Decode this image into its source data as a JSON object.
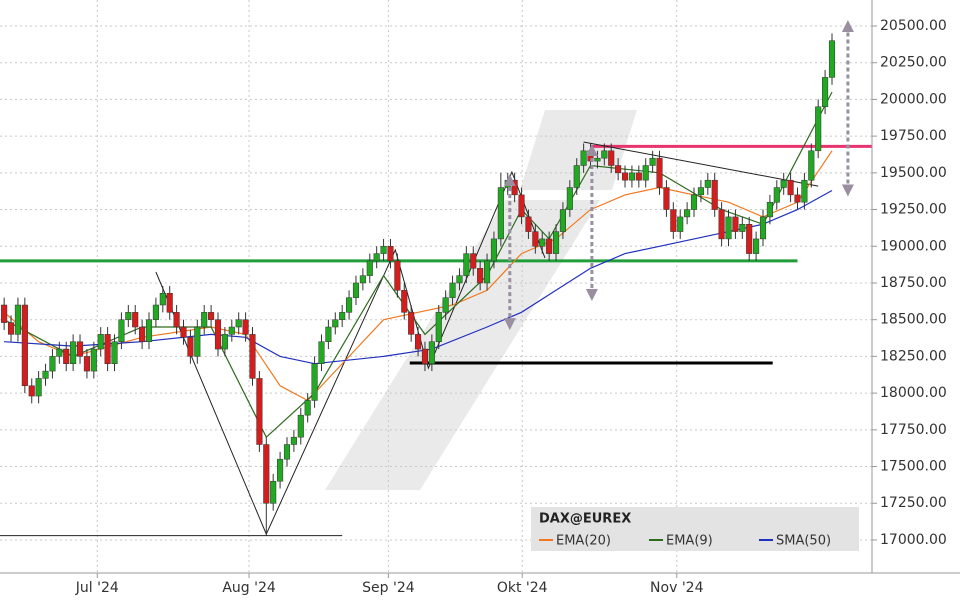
{
  "chart_data": {
    "type": "candlestick",
    "instrument": "DAX@EUREX",
    "xlim": [
      -0.6,
      125.8
    ],
    "xticks": [
      {
        "value": 13.5,
        "label": "Jul '24"
      },
      {
        "value": 35.5,
        "label": "Aug '24"
      },
      {
        "value": 55.7,
        "label": "Sep '24"
      },
      {
        "value": 75.1,
        "label": "Okt '24"
      },
      {
        "value": 97.5,
        "label": "Nov '24"
      }
    ],
    "ylim": [
      16775,
      20677
    ],
    "yticks": [
      {
        "value": 17000,
        "label": "17000.00"
      },
      {
        "value": 17250,
        "label": "17250.00"
      },
      {
        "value": 17500,
        "label": "17500.00"
      },
      {
        "value": 17750,
        "label": "17750.00"
      },
      {
        "value": 18000,
        "label": "18000.00"
      },
      {
        "value": 18250,
        "label": "18250.00"
      },
      {
        "value": 18500,
        "label": "18500.00"
      },
      {
        "value": 18750,
        "label": "18750.00"
      },
      {
        "value": 19000,
        "label": "19000.00"
      },
      {
        "value": 19250,
        "label": "19250.00"
      },
      {
        "value": 19500,
        "label": "19500.00"
      },
      {
        "value": 19750,
        "label": "19750.00"
      },
      {
        "value": 20000,
        "label": "20000.00"
      },
      {
        "value": 20250,
        "label": "20250.00"
      },
      {
        "value": 20500,
        "label": "20500.00"
      }
    ],
    "grid": true,
    "up_color": "#22a822",
    "down_color": "#d41e1e",
    "open": [
      18600,
      18480,
      18400,
      18600,
      18050,
      17980,
      18100,
      18150,
      18250,
      18300,
      18200,
      18350,
      18250,
      18150,
      18300,
      18400,
      18200,
      18350,
      18500,
      18550,
      18450,
      18350,
      18500,
      18600,
      18680,
      18550,
      18450,
      18380,
      18250,
      18450,
      18550,
      18500,
      18300,
      18400,
      18450,
      18500,
      18400,
      18100,
      17650,
      17250,
      17400,
      17550,
      17650,
      17700,
      17850,
      17950,
      18200,
      18350,
      18450,
      18500,
      18550,
      18650,
      18750,
      18800,
      18900,
      18950,
      19000,
      18900,
      18700,
      18550,
      18400,
      18300,
      18200,
      18350,
      18550,
      18650,
      18750,
      18800,
      18950,
      18850,
      18750,
      18900,
      19050,
      19400,
      19450,
      19350,
      19200,
      19100,
      19000,
      19050,
      18950,
      19100,
      19250,
      19400,
      19550,
      19650,
      19580,
      19600,
      19650,
      19550,
      19500,
      19450,
      19500,
      19450,
      19550,
      19600,
      19400,
      19250,
      19100,
      19200,
      19250,
      19350,
      19400,
      19450,
      19250,
      19050,
      19200,
      19100,
      19150,
      18950,
      19050,
      19200,
      19300,
      19400,
      19450,
      19350,
      19300,
      19450,
      19650,
      19950,
      20150
    ],
    "high": [
      18650,
      18530,
      18650,
      18650,
      18100,
      18150,
      18200,
      18300,
      18350,
      18350,
      18400,
      18400,
      18300,
      18350,
      18450,
      18450,
      18400,
      18550,
      18600,
      18600,
      18500,
      18550,
      18650,
      18730,
      18730,
      18600,
      18500,
      18430,
      18500,
      18600,
      18600,
      18550,
      18450,
      18500,
      18550,
      18550,
      18450,
      18150,
      17700,
      17450,
      17600,
      17700,
      17750,
      17900,
      18000,
      18250,
      18400,
      18500,
      18550,
      18600,
      18700,
      18800,
      18850,
      18950,
      19000,
      19050,
      19050,
      18950,
      18750,
      18600,
      18450,
      18350,
      18400,
      18600,
      18700,
      18800,
      18850,
      19000,
      19000,
      18900,
      18950,
      19100,
      19500,
      19500,
      19500,
      19400,
      19250,
      19150,
      19100,
      19100,
      19150,
      19300,
      19450,
      19600,
      19700,
      19700,
      19650,
      19700,
      19700,
      19600,
      19550,
      19550,
      19550,
      19600,
      19650,
      19650,
      19450,
      19300,
      19250,
      19300,
      19400,
      19450,
      19500,
      19500,
      19300,
      19250,
      19250,
      19200,
      19200,
      19100,
      19250,
      19350,
      19450,
      19500,
      19500,
      19400,
      19500,
      19700,
      20000,
      20200,
      20450
    ],
    "low": [
      18430,
      18350,
      18350,
      18000,
      17930,
      17930,
      18050,
      18100,
      18200,
      18150,
      18150,
      18200,
      18100,
      18100,
      18250,
      18150,
      18150,
      18300,
      18450,
      18400,
      18300,
      18300,
      18450,
      18550,
      18500,
      18400,
      18330,
      18200,
      18200,
      18400,
      18450,
      18250,
      18250,
      18350,
      18400,
      18350,
      18050,
      17600,
      17030,
      17200,
      17350,
      17500,
      17600,
      17650,
      17800,
      17900,
      18150,
      18300,
      18400,
      18450,
      18500,
      18600,
      18700,
      18750,
      18850,
      18900,
      18850,
      18650,
      18500,
      18350,
      18250,
      18150,
      18150,
      18300,
      18500,
      18600,
      18700,
      18750,
      18800,
      18700,
      18700,
      18850,
      19000,
      19350,
      19300,
      19150,
      19050,
      18950,
      18950,
      18900,
      18900,
      19050,
      19200,
      19350,
      19500,
      19530,
      19530,
      19550,
      19500,
      19450,
      19400,
      19400,
      19400,
      19400,
      19500,
      19350,
      19200,
      19050,
      19050,
      19150,
      19200,
      19300,
      19350,
      19200,
      19000,
      19000,
      19050,
      19050,
      18900,
      18900,
      19000,
      19150,
      19250,
      19350,
      19300,
      19250,
      19250,
      19400,
      19600,
      19900,
      20100
    ],
    "close": [
      18480,
      18400,
      18600,
      18050,
      17980,
      18100,
      18150,
      18250,
      18300,
      18200,
      18350,
      18250,
      18150,
      18300,
      18400,
      18200,
      18350,
      18500,
      18550,
      18450,
      18350,
      18500,
      18600,
      18680,
      18550,
      18450,
      18380,
      18250,
      18450,
      18550,
      18500,
      18300,
      18400,
      18450,
      18500,
      18400,
      18100,
      17650,
      17250,
      17400,
      17550,
      17650,
      17700,
      17850,
      17950,
      18200,
      18350,
      18450,
      18500,
      18550,
      18650,
      18750,
      18800,
      18900,
      18950,
      19000,
      18900,
      18700,
      18550,
      18400,
      18300,
      18200,
      18350,
      18550,
      18650,
      18750,
      18800,
      18950,
      18850,
      18750,
      18900,
      19050,
      19400,
      19450,
      19350,
      19200,
      19100,
      19000,
      19050,
      18950,
      19100,
      19250,
      19400,
      19550,
      19650,
      19580,
      19600,
      19650,
      19550,
      19500,
      19450,
      19500,
      19450,
      19550,
      19600,
      19400,
      19250,
      19100,
      19200,
      19250,
      19350,
      19400,
      19450,
      19250,
      19050,
      19200,
      19100,
      19150,
      18950,
      19050,
      19200,
      19300,
      19400,
      19450,
      19350,
      19300,
      19450,
      19650,
      19950,
      20150,
      20400
    ],
    "series": [
      {
        "name": "EMA(20)",
        "color": "#f07820",
        "x": [
          0,
          5,
          10,
          20,
          30,
          35,
          40,
          44,
          48,
          55,
          60,
          65,
          70,
          75,
          80,
          85,
          90,
          95,
          100,
          105,
          110,
          115,
          120
        ],
        "values": [
          18550,
          18350,
          18250,
          18380,
          18450,
          18400,
          18050,
          17950,
          18150,
          18500,
          18550,
          18600,
          18700,
          18950,
          19050,
          19250,
          19350,
          19400,
          19350,
          19300,
          19200,
          19300,
          19650
        ]
      },
      {
        "name": "EMA(9)",
        "color": "#2e6b1e",
        "x": [
          0,
          10,
          20,
          30,
          38,
          45,
          55,
          61,
          70,
          75,
          79,
          85,
          95,
          104,
          110,
          120
        ],
        "values": [
          18500,
          18250,
          18450,
          18450,
          17700,
          18000,
          18800,
          18400,
          18800,
          19250,
          19050,
          19550,
          19500,
          19250,
          19150,
          20050
        ]
      },
      {
        "name": "SMA(50)",
        "color": "#2030c0",
        "x": [
          0,
          10,
          20,
          30,
          35,
          40,
          45,
          55,
          62,
          70,
          75,
          80,
          85,
          90,
          95,
          100,
          105,
          110,
          115,
          120
        ],
        "values": [
          18350,
          18320,
          18350,
          18400,
          18380,
          18250,
          18200,
          18250,
          18300,
          18450,
          18550,
          18700,
          18850,
          18950,
          19000,
          19050,
          19100,
          19150,
          19250,
          19380
        ]
      }
    ],
    "drawings": [
      {
        "kind": "line",
        "color": "#1f9e3a",
        "width": 3,
        "x": [
          -0.6,
          115
        ],
        "values": [
          18900,
          18900
        ]
      },
      {
        "kind": "line",
        "color": "#e8336e",
        "width": 3,
        "x": [
          85,
          125.8
        ],
        "values": [
          19680,
          19680
        ]
      },
      {
        "kind": "line",
        "color": "#000000",
        "width": 3,
        "x": [
          58.8,
          111.4
        ],
        "values": [
          18205,
          18205
        ]
      },
      {
        "kind": "line",
        "color": "#222222",
        "width": 1,
        "x": [
          84,
          118
        ],
        "values": [
          19710,
          19410
        ]
      },
      {
        "kind": "line",
        "color": "#222222",
        "width": 1,
        "x": [
          -0.6,
          49
        ],
        "values": [
          17030,
          17030
        ]
      },
      {
        "kind": "line",
        "color": "#222222",
        "width": 1,
        "x": [
          22,
          38,
          56.7,
          61.5,
          73.6,
          78.4
        ],
        "values": [
          18825,
          17040,
          18975,
          18170,
          19505,
          18920
        ]
      },
      {
        "kind": "arrow",
        "color": "#9a8fa0",
        "width": 3,
        "x": [
          73.3,
          73.3
        ],
        "values": [
          18470,
          19450
        ]
      },
      {
        "kind": "arrow",
        "color": "#9a8fa0",
        "width": 3,
        "x": [
          85.2,
          85.2
        ],
        "values": [
          18668,
          19655
        ]
      },
      {
        "kind": "arrow",
        "color": "#9a8fa0",
        "width": 3,
        "x": [
          122.3,
          122.3
        ],
        "values": [
          19380,
          20500
        ]
      }
    ]
  }
}
